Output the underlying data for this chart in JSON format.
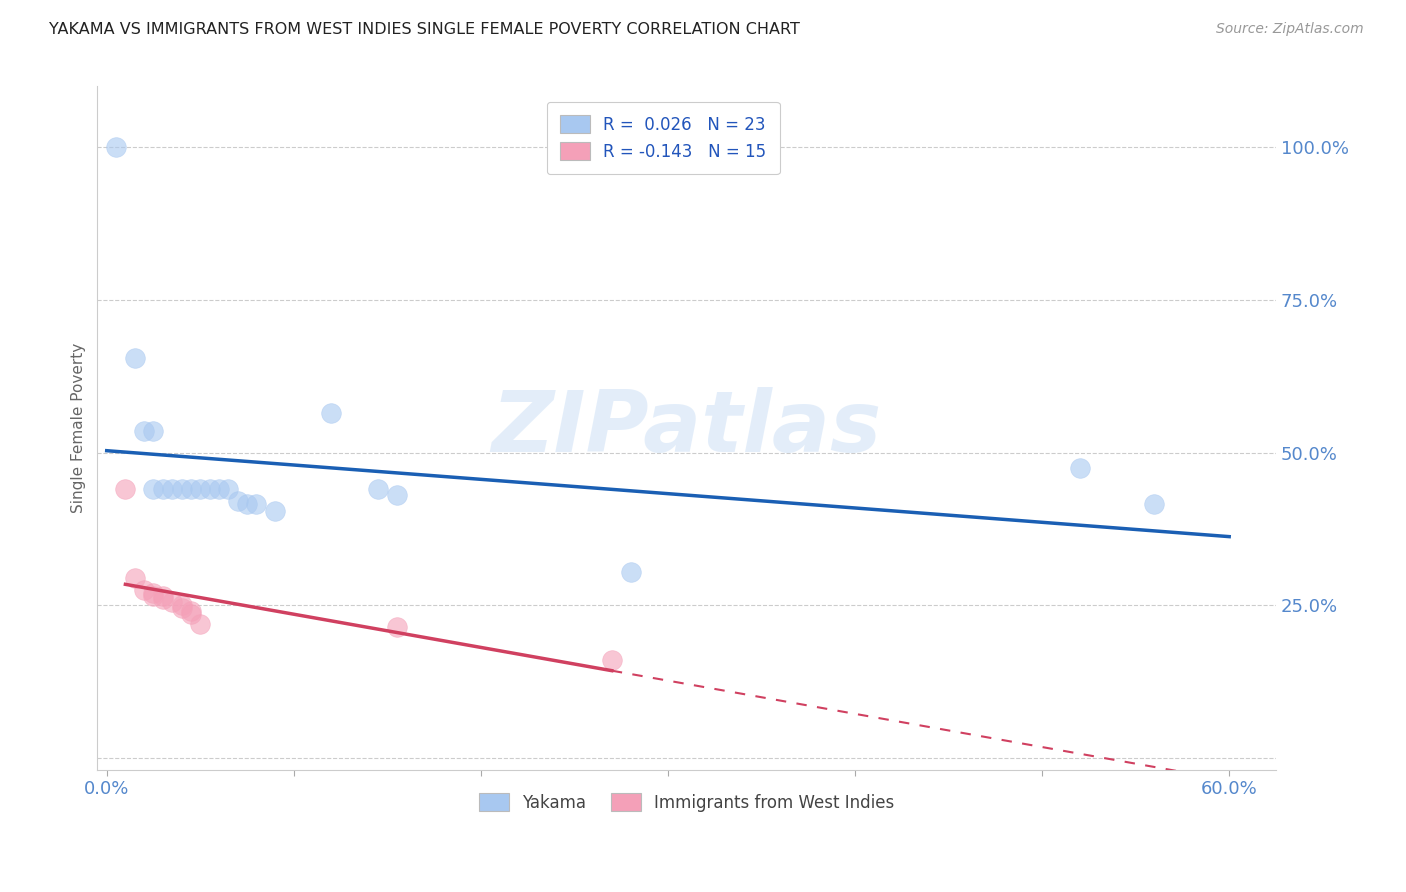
{
  "title": "YAKAMA VS IMMIGRANTS FROM WEST INDIES SINGLE FEMALE POVERTY CORRELATION CHART",
  "source": "Source: ZipAtlas.com",
  "ylabel_label": "Single Female Poverty",
  "x_tick_labels": [
    "0.0%",
    "",
    "",
    "",
    "",
    "",
    "60.0%"
  ],
  "y_tick_labels": [
    "",
    "25.0%",
    "50.0%",
    "75.0%",
    "100.0%"
  ],
  "legend_entries": [
    {
      "label": "R =  0.026   N = 23"
    },
    {
      "label": "R = -0.143   N = 15"
    }
  ],
  "legend_bottom": [
    "Yakama",
    "Immigrants from West Indies"
  ],
  "yakama_color": "#a8c8f0",
  "west_indies_color": "#f4a0b8",
  "yakama_line_color": "#1a5fb4",
  "west_indies_line_color": "#d04060",
  "yakama_points": [
    [
      0.005,
      1.0
    ],
    [
      0.015,
      0.655
    ],
    [
      0.02,
      0.535
    ],
    [
      0.025,
      0.535
    ],
    [
      0.025,
      0.44
    ],
    [
      0.03,
      0.44
    ],
    [
      0.035,
      0.44
    ],
    [
      0.04,
      0.44
    ],
    [
      0.045,
      0.44
    ],
    [
      0.05,
      0.44
    ],
    [
      0.055,
      0.44
    ],
    [
      0.06,
      0.44
    ],
    [
      0.065,
      0.44
    ],
    [
      0.07,
      0.42
    ],
    [
      0.075,
      0.415
    ],
    [
      0.08,
      0.415
    ],
    [
      0.09,
      0.405
    ],
    [
      0.12,
      0.565
    ],
    [
      0.145,
      0.44
    ],
    [
      0.155,
      0.43
    ],
    [
      0.28,
      0.305
    ],
    [
      0.52,
      0.475
    ],
    [
      0.56,
      0.415
    ]
  ],
  "west_indies_points": [
    [
      0.01,
      0.44
    ],
    [
      0.015,
      0.295
    ],
    [
      0.02,
      0.275
    ],
    [
      0.025,
      0.27
    ],
    [
      0.025,
      0.265
    ],
    [
      0.03,
      0.265
    ],
    [
      0.03,
      0.26
    ],
    [
      0.035,
      0.255
    ],
    [
      0.04,
      0.25
    ],
    [
      0.04,
      0.245
    ],
    [
      0.045,
      0.24
    ],
    [
      0.045,
      0.235
    ],
    [
      0.05,
      0.22
    ],
    [
      0.155,
      0.215
    ],
    [
      0.27,
      0.16
    ]
  ],
  "watermark_text": "ZIPatlas",
  "watermark_color": "#c8ddf5",
  "background_color": "#ffffff",
  "grid_color": "#cccccc",
  "tick_color": "#5588cc",
  "spine_color": "#cccccc"
}
